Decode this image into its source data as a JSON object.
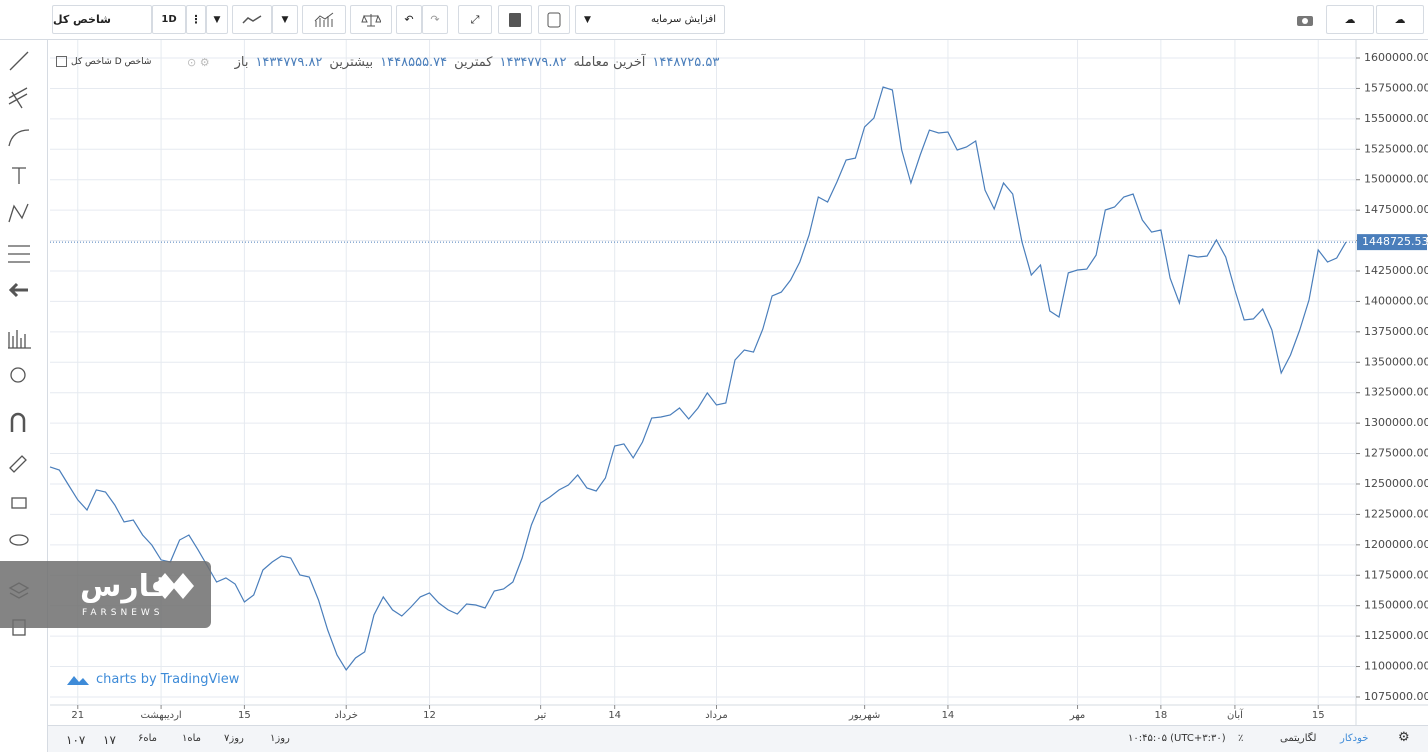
{
  "toolbar": {
    "symbol": "شاخص کل",
    "interval": "1D",
    "study": "افزایش سرمایه"
  },
  "legend": {
    "symbol": "شاخص D شاخص کل",
    "items": [
      "باز",
      "۱۴۳۴۷۷۹.۸۲",
      "بیشترین",
      "۱۴۴۸۵۵۵.۷۴",
      "کمترین",
      "۱۴۳۴۷۷۹.۸۲",
      "آخرین معامله",
      "۱۴۴۸۷۲۵.۵۳"
    ]
  },
  "watermark": {
    "logo": "فارس",
    "name": "FARSNEWS"
  },
  "attribution": "charts by TradingView",
  "bottom_bar": {
    "ranges": [
      "۱۰۷",
      "۱۷",
      "۶ماه",
      "۱ماه",
      "روز۷",
      "روز۱"
    ],
    "time": "۱۰:۴۵:۰۵ (UTC+۳:۳۰)",
    "percent": "٪",
    "log": "لگاریتمی",
    "auto": "خودکار"
  },
  "chart_data": {
    "type": "line",
    "color": "#4a7ebb",
    "grid": true,
    "categories": [
      null,
      null,
      null,
      "21",
      null,
      null,
      null,
      null,
      null,
      null,
      null,
      null,
      "اردیبهشت",
      null,
      null,
      null,
      null,
      null,
      null,
      null,
      null,
      "15",
      null,
      null,
      null,
      null,
      null,
      null,
      null,
      null,
      null,
      null,
      "خرداد",
      null,
      null,
      null,
      null,
      null,
      null,
      null,
      null,
      "12",
      null,
      null,
      null,
      null,
      null,
      null,
      null,
      null,
      null,
      null,
      null,
      "تیر",
      null,
      null,
      null,
      null,
      null,
      null,
      null,
      "14",
      null,
      null,
      null,
      null,
      null,
      null,
      null,
      null,
      null,
      null,
      "مرداد",
      null,
      null,
      null,
      null,
      null,
      null,
      null,
      null,
      null,
      null,
      null,
      null,
      null,
      null,
      null,
      "شهریور",
      null,
      null,
      null,
      null,
      null,
      null,
      null,
      null,
      "14",
      null,
      null,
      null,
      null,
      null,
      null,
      null,
      null,
      null,
      null,
      null,
      null,
      null,
      "مهر",
      null,
      null,
      null,
      null,
      null,
      null,
      null,
      null,
      "18",
      null,
      null,
      null,
      null,
      null,
      null,
      null,
      "آبان",
      null,
      null,
      null,
      null,
      null,
      null,
      null,
      null,
      "15",
      null,
      null,
      null
    ],
    "values": [
      1264000,
      1261500,
      1249200,
      1236900,
      1228600,
      1245100,
      1243400,
      1232700,
      1218800,
      1220400,
      1208100,
      1199900,
      1187600,
      1185900,
      1204000,
      1208100,
      1195800,
      1182600,
      1169500,
      1172800,
      1167800,
      1153000,
      1158800,
      1179300,
      1185900,
      1190800,
      1189200,
      1175200,
      1173600,
      1154700,
      1130000,
      1109500,
      1097200,
      1107000,
      1112000,
      1142400,
      1157200,
      1146500,
      1141500,
      1148900,
      1157200,
      1160400,
      1152200,
      1146500,
      1143200,
      1151400,
      1150600,
      1148100,
      1162100,
      1163700,
      1169500,
      1189200,
      1216300,
      1234400,
      1239300,
      1245100,
      1249200,
      1257400,
      1246700,
      1244200,
      1254900,
      1281200,
      1282900,
      1271400,
      1284500,
      1304200,
      1305000,
      1306700,
      1312400,
      1303400,
      1312400,
      1324800,
      1314900,
      1316500,
      1351900,
      1360100,
      1358400,
      1377300,
      1404500,
      1407700,
      1417600,
      1432400,
      1454600,
      1485800,
      1481700,
      1498100,
      1516200,
      1517800,
      1543300,
      1550700,
      1576200,
      1573700,
      1524400,
      1497300,
      1520300,
      1540800,
      1538400,
      1539200,
      1524400,
      1526900,
      1531800,
      1491500,
      1475900,
      1497300,
      1488300,
      1448800,
      1421700,
      1429900,
      1392100,
      1387200,
      1423400,
      1425800,
      1426600,
      1438100,
      1475100,
      1477600,
      1485800,
      1488300,
      1466900,
      1457000,
      1458700,
      1419200,
      1398700,
      1438100,
      1436500,
      1437300,
      1450500,
      1436500,
      1409400,
      1384700,
      1385600,
      1393800,
      1376500,
      1341200,
      1356000,
      1376500,
      1401200,
      1442300,
      1432400,
      1435700,
      1448725.53
    ],
    "last_price": 1448725.53,
    "ylim": [
      1068400,
      1614800
    ],
    "yticks": [
      {
        "value": 1075000,
        "label": "1075000.00"
      },
      {
        "value": 1100000,
        "label": "1100000.00"
      },
      {
        "value": 1125000,
        "label": "1125000.00"
      },
      {
        "value": 1150000,
        "label": "1150000.00"
      },
      {
        "value": 1175000,
        "label": "1175000.00"
      },
      {
        "value": 1200000,
        "label": "1200000.00"
      },
      {
        "value": 1225000,
        "label": "1225000.00"
      },
      {
        "value": 1250000,
        "label": "1250000.00"
      },
      {
        "value": 1275000,
        "label": "1275000.00"
      },
      {
        "value": 1300000,
        "label": "1300000.00"
      },
      {
        "value": 1325000,
        "label": "1325000.00"
      },
      {
        "value": 1350000,
        "label": "1350000.00"
      },
      {
        "value": 1375000,
        "label": "1375000.00"
      },
      {
        "value": 1400000,
        "label": "1400000.00"
      },
      {
        "value": 1425000,
        "label": "1425000.00"
      },
      {
        "value": 1450000,
        "label": "1450000.00"
      },
      {
        "value": 1475000,
        "label": "1475000.00"
      },
      {
        "value": 1500000,
        "label": "1500000.00"
      },
      {
        "value": 1525000,
        "label": "1525000.00"
      },
      {
        "value": 1550000,
        "label": "1550000.00"
      },
      {
        "value": 1575000,
        "label": "1575000.00"
      },
      {
        "value": 1600000,
        "label": "1600000.00"
      }
    ]
  }
}
